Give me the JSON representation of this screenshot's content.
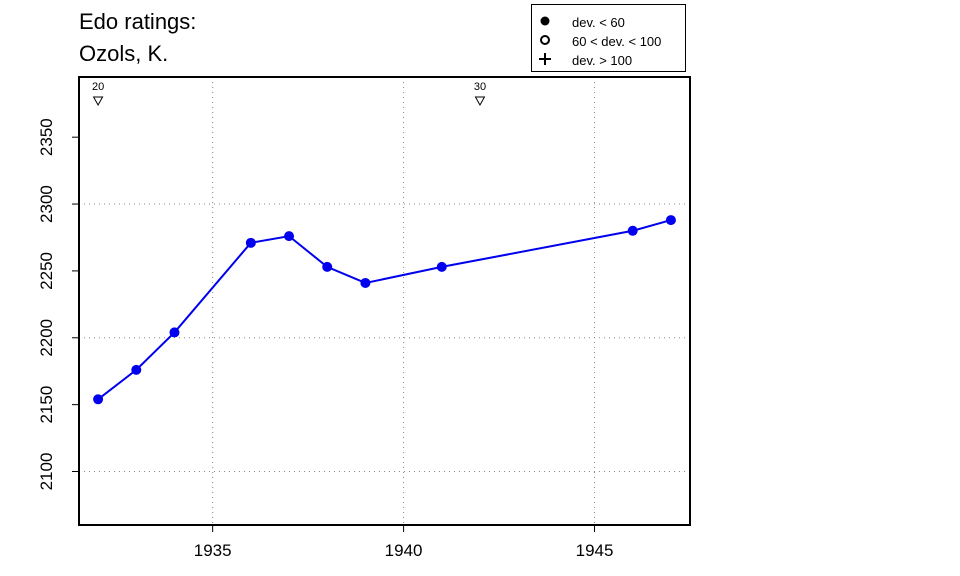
{
  "title": "Edo ratings:",
  "subtitle": "Ozols, K.",
  "legend": [
    {
      "label": "dev. < 60",
      "symbol": "filled-circle"
    },
    {
      "label": "60 < dev. < 100",
      "symbol": "open-circle"
    },
    {
      "label": "dev. > 100",
      "symbol": "plus"
    }
  ],
  "colors": {
    "series": "#0000ee",
    "grid": "#888888",
    "axis": "#000000"
  },
  "chart_data": {
    "type": "line",
    "xlim": [
      1931.5,
      1947.5
    ],
    "ylim": [
      2060,
      2395
    ],
    "xticks": [
      1935,
      1940,
      1945
    ],
    "yticks": [
      2100,
      2150,
      2200,
      2250,
      2300,
      2350
    ],
    "grid_x": [
      1935,
      1940,
      1945
    ],
    "grid_y": [
      2100,
      2200,
      2300
    ],
    "series": [
      {
        "x": [
          1932,
          1933,
          1934,
          1936,
          1937,
          1938,
          1939,
          1941,
          1946,
          1947
        ],
        "y": [
          2154,
          2176,
          2204,
          2271,
          2276,
          2253,
          2241,
          2253,
          2280,
          2288
        ]
      }
    ],
    "markers": [
      {
        "x": 1932,
        "label": "20"
      },
      {
        "x": 1942,
        "label": "30"
      }
    ]
  }
}
